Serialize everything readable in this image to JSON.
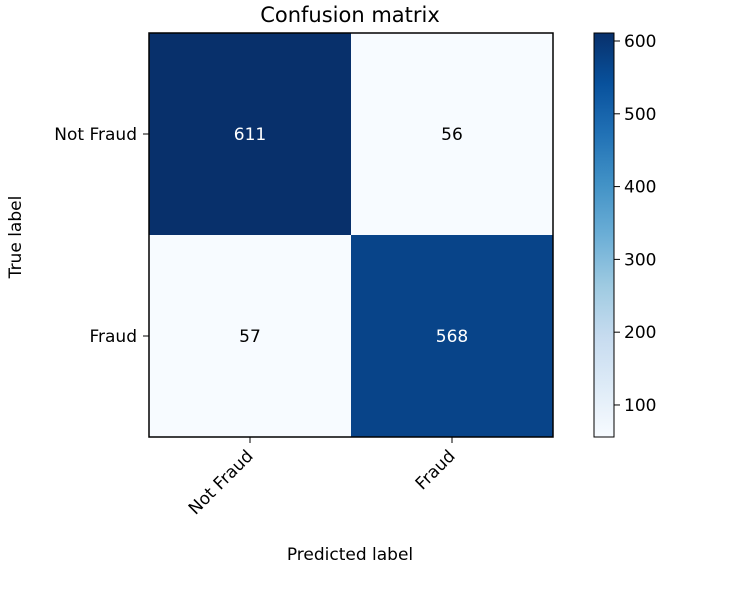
{
  "chart_data": {
    "type": "heatmap",
    "title": "Confusion matrix",
    "xlabel": "Predicted label",
    "ylabel": "True label",
    "x_categories": [
      "Not Fraud",
      "Fraud"
    ],
    "y_categories": [
      "Not Fraud",
      "Fraud"
    ],
    "values": [
      [
        611,
        56
      ],
      [
        57,
        568
      ]
    ],
    "colormap": "Blues",
    "colorbar": {
      "min": 56,
      "max": 611,
      "ticks": [
        100,
        200,
        300,
        400,
        500,
        600
      ]
    },
    "colors": {
      "low": "#f7fbff",
      "high": "#08306b",
      "text_on_dark": "#ffffff",
      "text_on_light": "#000000"
    }
  }
}
